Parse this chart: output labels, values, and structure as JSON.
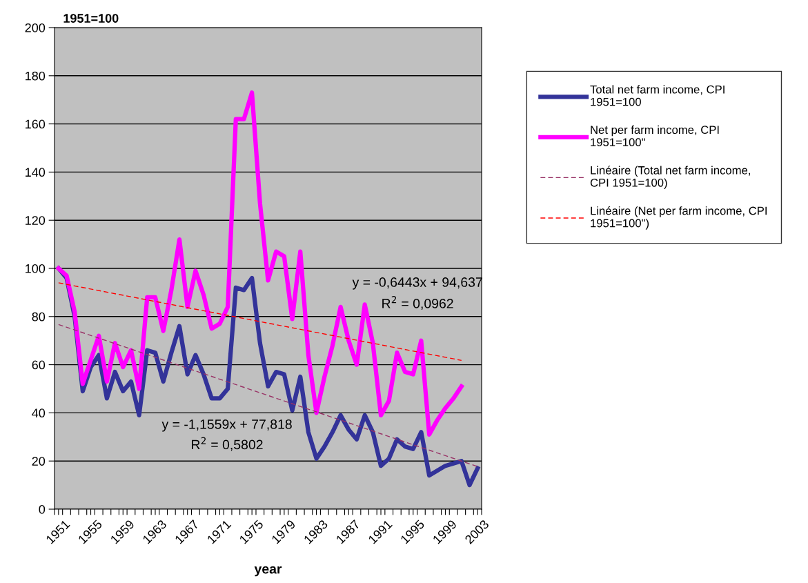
{
  "chart_data": {
    "type": "line",
    "ylabel": "1951=100",
    "xlabel": "year",
    "x": [
      1951,
      1952,
      1953,
      1954,
      1955,
      1956,
      1957,
      1958,
      1959,
      1960,
      1961,
      1962,
      1963,
      1964,
      1965,
      1966,
      1967,
      1968,
      1969,
      1970,
      1971,
      1972,
      1973,
      1974,
      1975,
      1976,
      1977,
      1978,
      1979,
      1980,
      1981,
      1982,
      1983,
      1984,
      1985,
      1986,
      1987,
      1988,
      1989,
      1990,
      1991,
      1992,
      1993,
      1994,
      1995,
      1996,
      1997,
      1998,
      1999,
      2000,
      2001,
      2002,
      2003
    ],
    "xlim": [
      1950.5,
      2003.5
    ],
    "xticks": [
      1951,
      1955,
      1959,
      1963,
      1967,
      1971,
      1975,
      1979,
      1983,
      1987,
      1991,
      1995,
      1999,
      2003,
      {
        "value": 1950.5,
        "label": null
      },
      {
        "value": 1951.5,
        "label": null
      },
      {
        "value": 1952.5,
        "label": null
      },
      {
        "value": 1953.5,
        "label": null
      },
      {
        "value": 1954.5,
        "label": null
      },
      {
        "value": 1955.5,
        "label": null
      },
      {
        "value": 1956.5,
        "label": null
      },
      {
        "value": 1957.5,
        "label": null
      },
      {
        "value": 1958.5,
        "label": null
      },
      {
        "value": 1959.5,
        "label": null
      },
      {
        "value": 1960.5,
        "label": null
      },
      {
        "value": 1961.5,
        "label": null
      },
      {
        "value": 1962.5,
        "label": null
      },
      {
        "value": 1963.5,
        "label": null
      },
      {
        "value": 1964.5,
        "label": null
      },
      {
        "value": 1965.5,
        "label": null
      },
      {
        "value": 1966.5,
        "label": null
      },
      {
        "value": 1967.5,
        "label": null
      },
      {
        "value": 1968.5,
        "label": null
      },
      {
        "value": 1969.5,
        "label": null
      },
      {
        "value": 1970.5,
        "label": null
      },
      {
        "value": 1971.5,
        "label": null
      },
      {
        "value": 1972.5,
        "label": null
      },
      {
        "value": 1973.5,
        "label": null
      },
      {
        "value": 1974.5,
        "label": null
      },
      {
        "value": 1975.5,
        "label": null
      },
      {
        "value": 1976.5,
        "label": null
      },
      {
        "value": 1977.5,
        "label": null
      },
      {
        "value": 1978.5,
        "label": null
      },
      {
        "value": 1979.5,
        "label": null
      },
      {
        "value": 1980.5,
        "label": null
      },
      {
        "value": 1981.5,
        "label": null
      },
      {
        "value": 1982.5,
        "label": null
      },
      {
        "value": 1983.5,
        "label": null
      },
      {
        "value": 1984.5,
        "label": null
      },
      {
        "value": 1985.5,
        "label": null
      },
      {
        "value": 1986.5,
        "label": null
      },
      {
        "value": 1987.5,
        "label": null
      },
      {
        "value": 1988.5,
        "label": null
      },
      {
        "value": 1989.5,
        "label": null
      },
      {
        "value": 1990.5,
        "label": null
      },
      {
        "value": 1991.5,
        "label": null
      },
      {
        "value": 1992.5,
        "label": null
      },
      {
        "value": 1993.5,
        "label": null
      },
      {
        "value": 1994.5,
        "label": null
      },
      {
        "value": 1995.5,
        "label": null
      },
      {
        "value": 1996.5,
        "label": null
      },
      {
        "value": 1997.5,
        "label": null
      },
      {
        "value": 1998.5,
        "label": null
      },
      {
        "value": 1999.5,
        "label": null
      },
      {
        "value": 2000.5,
        "label": null
      },
      {
        "value": 2001.5,
        "label": null
      },
      {
        "value": 2002.5,
        "label": null
      },
      {
        "value": 2003.5,
        "label": null
      }
    ],
    "ylim": [
      0,
      200
    ],
    "yticks": [
      0,
      20,
      40,
      60,
      80,
      100,
      120,
      140,
      160,
      180,
      200
    ],
    "grid": "y",
    "legend": "right",
    "marker": "none",
    "series": [
      {
        "name": "Total net farm income, CPI\n1951=100",
        "color": "#333399",
        "line_style": "solid",
        "values": [
          100,
          96,
          80,
          49,
          59,
          64,
          46,
          57,
          49,
          53,
          39,
          66,
          65,
          53,
          65,
          76,
          56,
          64,
          56,
          46,
          46,
          50,
          92,
          91,
          96,
          69,
          51,
          57,
          56,
          41,
          55,
          32,
          21,
          26,
          32,
          39,
          33,
          29,
          39,
          32,
          18,
          21,
          29,
          26,
          25,
          32,
          14,
          16,
          18,
          19,
          20,
          10,
          17
        ]
      },
      {
        "name": "Net per farm income, CPI\n1951=100\"",
        "color": "#ff00ff",
        "line_style": "solid",
        "values": [
          100,
          97,
          82,
          52,
          62,
          72,
          53,
          69,
          59,
          66,
          50,
          88,
          88,
          74,
          91,
          112,
          84,
          99,
          89,
          75,
          77,
          84,
          162,
          162,
          173,
          127,
          95,
          107,
          105,
          79,
          107,
          64,
          40,
          55,
          68,
          84,
          70,
          60,
          85,
          69,
          39,
          45,
          65,
          57,
          56,
          70,
          31,
          37,
          42,
          46,
          51,
          null,
          null
        ]
      },
      {
        "name": "Linéaire (Total net farm income,\nCPI 1951=100)",
        "color": "#993366",
        "line_style": "dashed",
        "x": [
          1951,
          2003
        ],
        "values": [
          76.7,
          17.7
        ]
      },
      {
        "name": "Linéaire (Net per farm income, CPI\n1951=100\")",
        "color": "#ff0000",
        "line_style": "dashed",
        "x": [
          1951,
          2001
        ],
        "values": [
          94.0,
          61.8
        ]
      }
    ],
    "annotations": [
      "y = -1,1559x + 77,818",
      "R$^{2}$ = 0,5802",
      "y = -0,6443x + 94,637",
      "R$^{2}$ = 0,0962"
    ]
  }
}
